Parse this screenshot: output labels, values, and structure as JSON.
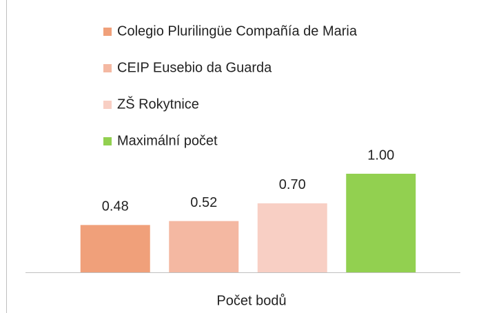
{
  "chart_data": {
    "type": "bar",
    "categories": [
      "Počet bodů"
    ],
    "series": [
      {
        "name": "Colegio Plurilingüe Compañía de Maria",
        "color": "#f0a07a",
        "values": [
          0.48
        ],
        "value_labels": [
          "0.48"
        ]
      },
      {
        "name": "CEIP Eusebio da Guarda",
        "color": "#f4b8a2",
        "values": [
          0.52
        ],
        "value_labels": [
          "0.52"
        ]
      },
      {
        "name": "ZŠ Rokytnice",
        "color": "#f8cfc4",
        "values": [
          0.7
        ],
        "value_labels": [
          "0.70"
        ]
      },
      {
        "name": "Maximální počet",
        "color": "#92d050",
        "values": [
          1.0
        ],
        "value_labels": [
          "1.00"
        ]
      }
    ],
    "legend": "top"
  }
}
